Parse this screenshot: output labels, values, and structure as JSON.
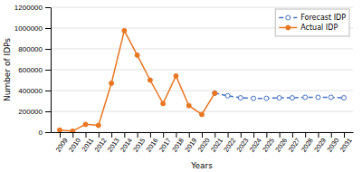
{
  "chart_data": {
    "type": "line",
    "xlabel": "Years",
    "ylabel": "Number of IDPs",
    "series": [
      {
        "name": "Forecast IDP",
        "color": "#4472c4",
        "marker": "open-circle",
        "line_style": "dashed",
        "x": [
          2021,
          2022,
          2023,
          2024,
          2025,
          2026,
          2027,
          2028,
          2029,
          2030,
          2031
        ],
        "values": [
          375000,
          350000,
          330000,
          325000,
          325000,
          330000,
          330000,
          335000,
          335000,
          335000,
          330000
        ]
      },
      {
        "name": "Actual IDP",
        "color": "#e87722",
        "marker": "circle",
        "line_style": "solid",
        "x": [
          2009,
          2010,
          2011,
          2012,
          2013,
          2014,
          2015,
          2016,
          2017,
          2018,
          2019,
          2020,
          2021
        ],
        "values": [
          20000,
          10000,
          75000,
          65000,
          470000,
          975000,
          740000,
          500000,
          275000,
          540000,
          255000,
          170000,
          375000
        ]
      }
    ],
    "xlim": [
      2008.3,
      2031.7
    ],
    "xticks": [
      2009,
      2010,
      2011,
      2012,
      2013,
      2014,
      2015,
      2016,
      2017,
      2018,
      2019,
      2020,
      2021,
      2022,
      2023,
      2024,
      2025,
      2026,
      2027,
      2028,
      2029,
      2030,
      2031
    ],
    "ylim": [
      0,
      1200000
    ],
    "yticks": [
      0,
      200000,
      400000,
      600000,
      800000,
      1000000,
      1200000
    ],
    "grid": true,
    "legend": "top-right"
  }
}
